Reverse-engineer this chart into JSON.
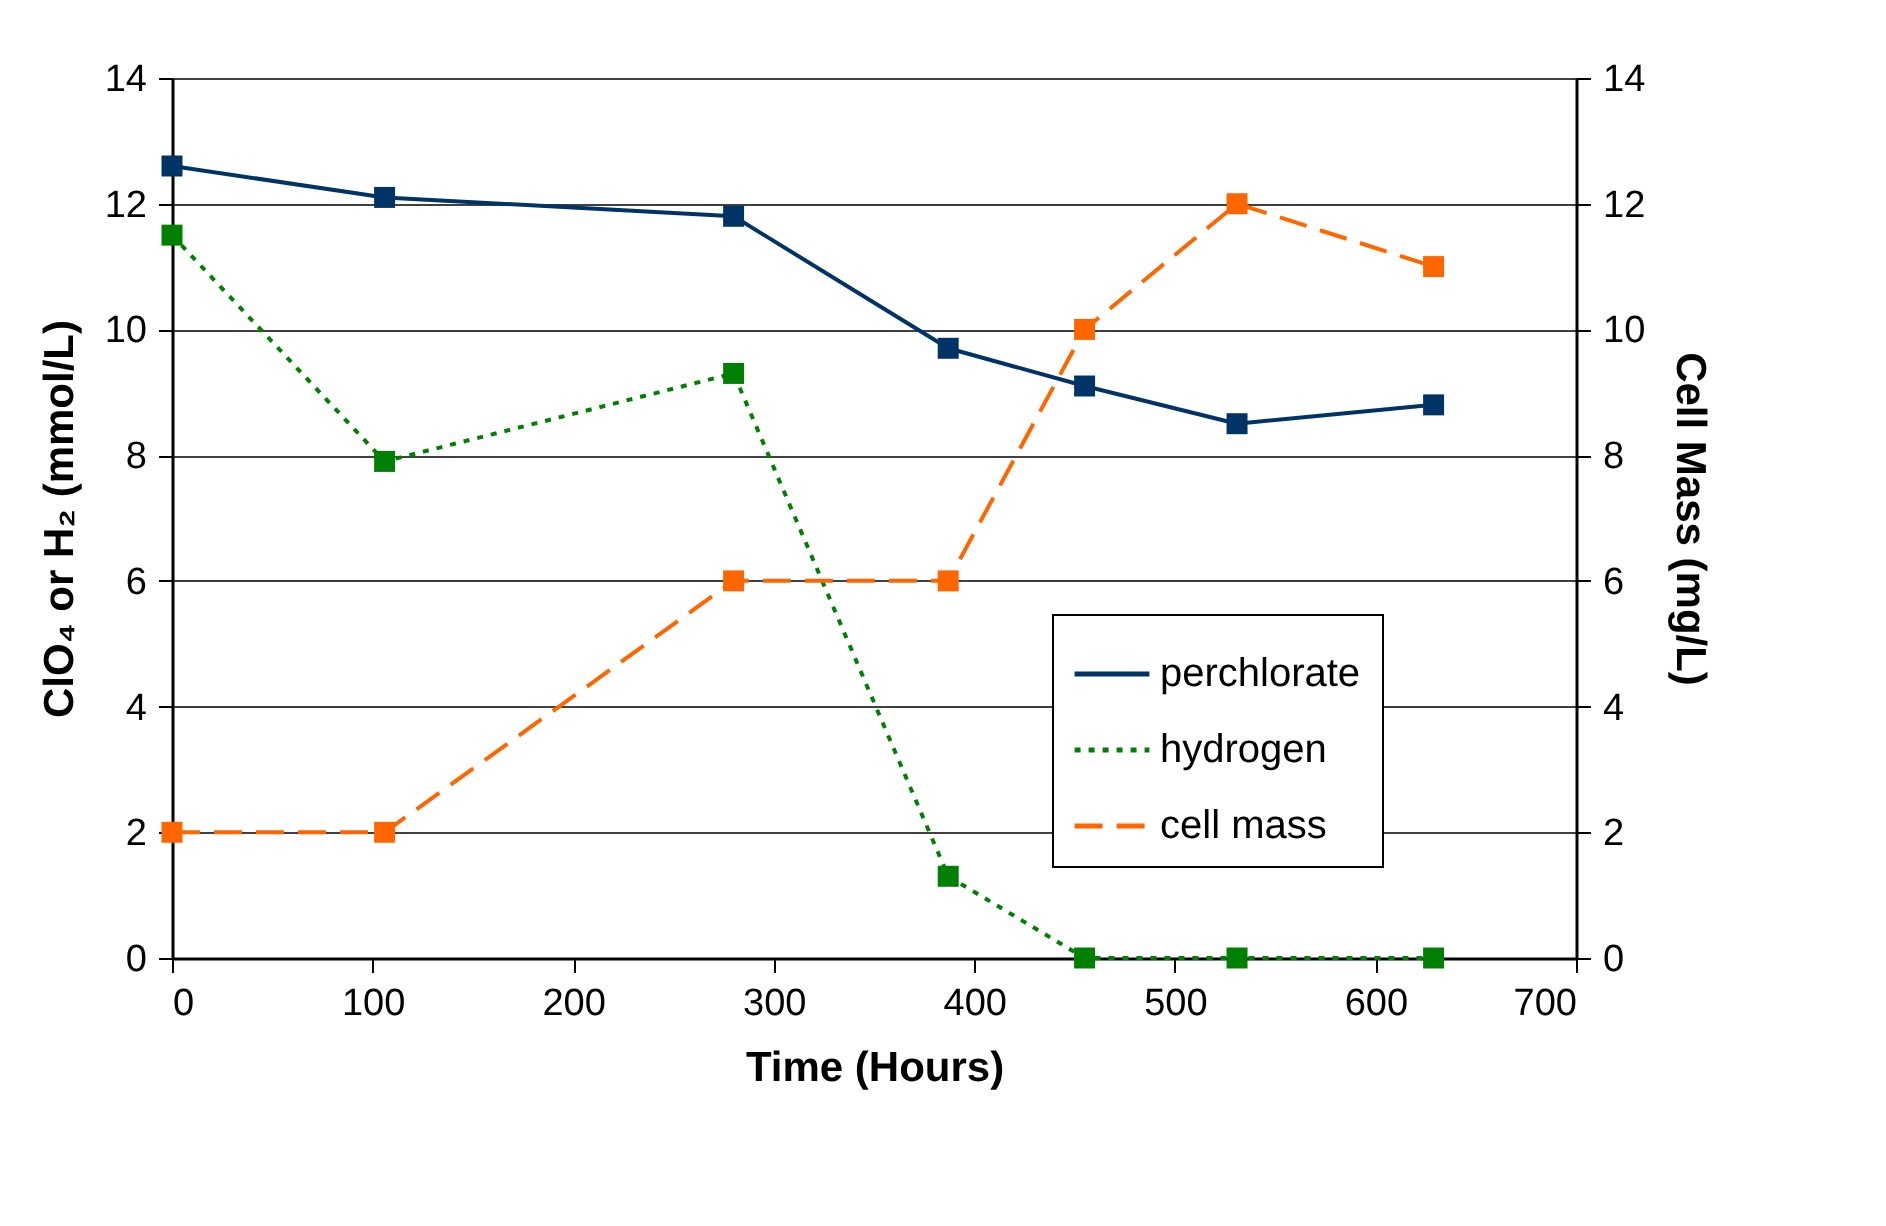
{
  "chart_data": {
    "type": "line",
    "xlabel": "Time (Hours)",
    "ylabel": "ClO₄ or H₂ (mmol/L)",
    "y2label": "Cell Mass (mg/L)",
    "x": [
      0,
      106,
      280,
      387,
      455,
      531,
      629
    ],
    "series": [
      {
        "name": "perchlorate",
        "color": "#003366",
        "line_style": "solid",
        "values": [
          12.6,
          12.1,
          11.8,
          9.7,
          9.1,
          8.5,
          8.8
        ]
      },
      {
        "name": "hydrogen",
        "color": "#008000",
        "line_style": "dotted",
        "values": [
          11.5,
          7.9,
          9.3,
          1.3,
          0,
          0,
          0
        ]
      },
      {
        "name": "cell mass",
        "color": "#ff6600",
        "line_style": "dashed",
        "axis": "y2",
        "values": [
          2,
          2,
          6,
          6,
          10,
          12,
          11
        ]
      }
    ],
    "xlim": [
      0,
      700
    ],
    "xticks": [
      0,
      100,
      200,
      300,
      400,
      500,
      600,
      700
    ],
    "ylim": [
      0,
      14
    ],
    "yticks": [
      0,
      2,
      4,
      6,
      8,
      10,
      12,
      14
    ],
    "y2lim": [
      0,
      14
    ],
    "y2ticks": [
      0,
      2,
      4,
      6,
      8,
      10,
      12,
      14
    ],
    "grid": "y",
    "legend": "bottom right",
    "marker": "square"
  }
}
